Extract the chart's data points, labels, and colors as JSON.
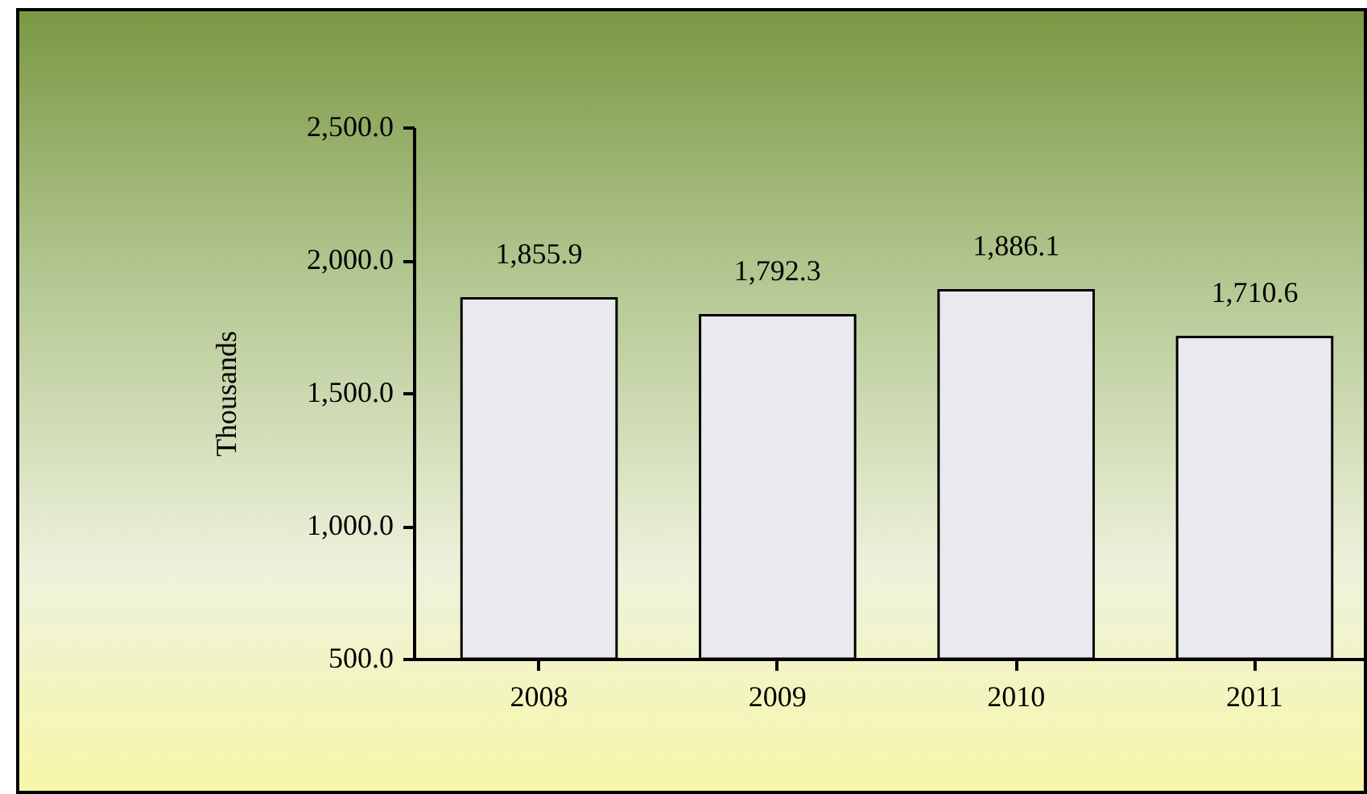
{
  "chart_data": {
    "type": "bar",
    "ylabel": "Thousands",
    "categories": [
      "2008",
      "2009",
      "2010",
      "2011"
    ],
    "values": [
      1855.9,
      1792.3,
      1886.1,
      1710.6
    ],
    "color": "#e9eaee",
    "ylim": [
      500,
      2500
    ],
    "yticks": [
      {
        "value": 500,
        "label": "500.0"
      },
      {
        "value": 1000,
        "label": "1,000.0"
      },
      {
        "value": 1500,
        "label": "1,500.0"
      },
      {
        "value": 2000,
        "label": "2,000.0"
      },
      {
        "value": 2500,
        "label": "2,500.0"
      }
    ],
    "value_labels": [
      "1,855.9",
      "1,792.3",
      "1,886.1",
      "1,710.6"
    ],
    "grid": false
  }
}
